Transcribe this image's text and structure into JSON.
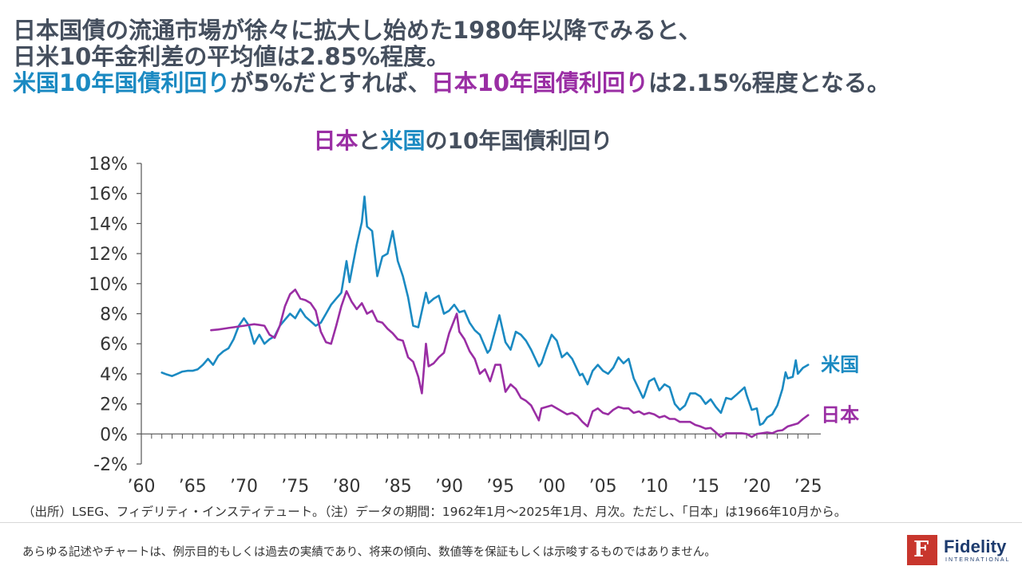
{
  "headline": {
    "line1": "日本国債の流通市場が徐々に拡大し始めた1980年以降でみると、",
    "line2": "日米10年金利差の平均値は2.85%程度。",
    "line3_us": "米国10年国債利回り",
    "line3_mid": "が5%だとすれば、",
    "line3_jp": "日本10年国債利回り",
    "line3_end": "は2.15%程度となる。"
  },
  "chart_data": {
    "type": "line",
    "title": {
      "jp": "日本",
      "joiner": "と",
      "us": "米国",
      "rest": "の10年国債利回り"
    },
    "xlabel": "",
    "ylabel": "",
    "xlim": [
      1960,
      2026
    ],
    "ylim": [
      -2,
      18
    ],
    "y_ticks": [
      -2,
      0,
      2,
      4,
      6,
      8,
      10,
      12,
      14,
      16,
      18
    ],
    "y_tick_labels": [
      "-2%",
      "0%",
      "2%",
      "4%",
      "6%",
      "8%",
      "10%",
      "12%",
      "14%",
      "16%",
      "18%"
    ],
    "x_ticks": [
      1960,
      1965,
      1970,
      1975,
      1980,
      1985,
      1990,
      1995,
      2000,
      2005,
      2010,
      2015,
      2020,
      2025
    ],
    "x_tick_labels": [
      "’60",
      "’65",
      "’70",
      "’75",
      "’80",
      "’85",
      "’90",
      "’95",
      "’00",
      "’05",
      "’10",
      "’15",
      "’20",
      "’25"
    ],
    "grid": false,
    "legend": "inline labels at right end of lines",
    "series": [
      {
        "name": "米国",
        "color": "#1b8ac2",
        "x": [
          1962.0,
          1962.5,
          1963.0,
          1963.5,
          1964.0,
          1964.5,
          1965.0,
          1965.5,
          1966.0,
          1966.5,
          1967.0,
          1967.5,
          1968.0,
          1968.5,
          1969.0,
          1969.5,
          1970.0,
          1970.5,
          1971.0,
          1971.5,
          1972.0,
          1972.5,
          1973.0,
          1973.5,
          1974.0,
          1974.5,
          1975.0,
          1975.5,
          1976.0,
          1976.5,
          1977.0,
          1977.5,
          1978.0,
          1978.5,
          1979.0,
          1979.5,
          1980.0,
          1980.3,
          1980.6,
          1981.0,
          1981.5,
          1981.75,
          1982.0,
          1982.5,
          1983.0,
          1983.5,
          1984.0,
          1984.5,
          1985.0,
          1985.5,
          1986.0,
          1986.5,
          1987.0,
          1987.75,
          1988.0,
          1988.5,
          1989.0,
          1989.5,
          1990.0,
          1990.5,
          1991.0,
          1991.5,
          1992.0,
          1992.5,
          1993.0,
          1993.75,
          1994.0,
          1994.9,
          1995.5,
          1996.0,
          1996.5,
          1997.0,
          1997.5,
          1998.0,
          1998.75,
          1999.0,
          1999.5,
          2000.0,
          2000.5,
          2001.0,
          2001.5,
          2002.0,
          2002.75,
          2003.0,
          2003.5,
          2004.0,
          2004.5,
          2005.0,
          2005.5,
          2006.0,
          2006.5,
          2007.0,
          2007.5,
          2008.0,
          2008.9,
          2009.0,
          2009.5,
          2010.0,
          2010.5,
          2011.0,
          2011.5,
          2012.0,
          2012.5,
          2013.0,
          2013.5,
          2014.0,
          2014.5,
          2015.0,
          2015.5,
          2016.0,
          2016.5,
          2017.0,
          2017.5,
          2018.0,
          2018.8,
          2019.0,
          2019.5,
          2020.0,
          2020.3,
          2020.6,
          2021.0,
          2021.5,
          2022.0,
          2022.5,
          2022.8,
          2023.0,
          2023.5,
          2023.8,
          2024.0,
          2024.5,
          2025.0
        ],
        "values": [
          4.08,
          3.95,
          3.85,
          4.0,
          4.15,
          4.2,
          4.2,
          4.3,
          4.6,
          5.0,
          4.6,
          5.2,
          5.5,
          5.7,
          6.3,
          7.2,
          7.7,
          7.2,
          6.0,
          6.6,
          6.0,
          6.3,
          6.5,
          7.2,
          7.6,
          8.0,
          7.7,
          8.3,
          7.8,
          7.5,
          7.2,
          7.4,
          8.0,
          8.6,
          9.0,
          9.4,
          11.5,
          10.1,
          11.2,
          12.6,
          14.1,
          15.8,
          13.8,
          13.5,
          10.5,
          11.8,
          12.0,
          13.5,
          11.5,
          10.5,
          9.1,
          7.2,
          7.1,
          9.4,
          8.7,
          9.0,
          9.2,
          8.0,
          8.2,
          8.6,
          8.1,
          8.2,
          7.4,
          6.9,
          6.6,
          5.4,
          5.6,
          7.9,
          6.1,
          5.6,
          6.8,
          6.6,
          6.2,
          5.6,
          4.5,
          4.7,
          5.7,
          6.6,
          6.2,
          5.1,
          5.4,
          5.0,
          3.9,
          4.0,
          3.3,
          4.2,
          4.6,
          4.2,
          4.0,
          4.4,
          5.1,
          4.7,
          5.0,
          3.7,
          2.4,
          2.5,
          3.5,
          3.7,
          2.9,
          3.3,
          3.1,
          2.0,
          1.6,
          1.9,
          2.7,
          2.7,
          2.5,
          2.0,
          2.3,
          1.8,
          1.4,
          2.4,
          2.3,
          2.6,
          3.1,
          2.6,
          1.6,
          1.7,
          0.6,
          0.7,
          1.1,
          1.3,
          1.9,
          3.0,
          4.1,
          3.7,
          3.8,
          4.9,
          4.0,
          4.4,
          4.6
        ]
      },
      {
        "name": "日本",
        "color": "#9a2ea4",
        "x": [
          1966.8,
          1967.5,
          1968.0,
          1968.5,
          1969.0,
          1969.5,
          1970.0,
          1970.5,
          1971.0,
          1971.5,
          1972.0,
          1972.5,
          1973.0,
          1973.5,
          1974.0,
          1974.5,
          1975.0,
          1975.5,
          1976.0,
          1976.5,
          1977.0,
          1977.5,
          1978.0,
          1978.5,
          1979.0,
          1979.5,
          1980.0,
          1980.5,
          1981.0,
          1981.5,
          1982.0,
          1982.5,
          1983.0,
          1983.5,
          1984.0,
          1984.5,
          1985.0,
          1985.5,
          1986.0,
          1986.5,
          1987.0,
          1987.35,
          1987.75,
          1988.0,
          1988.5,
          1989.0,
          1989.5,
          1990.0,
          1990.75,
          1991.0,
          1991.5,
          1992.0,
          1992.5,
          1993.0,
          1993.5,
          1994.0,
          1994.5,
          1995.0,
          1995.5,
          1996.0,
          1996.5,
          1997.0,
          1997.5,
          1998.0,
          1998.75,
          1999.0,
          1999.5,
          2000.0,
          2000.5,
          2001.0,
          2001.5,
          2002.0,
          2002.5,
          2003.0,
          2003.5,
          2004.0,
          2004.5,
          2005.0,
          2005.5,
          2006.0,
          2006.5,
          2007.0,
          2007.5,
          2008.0,
          2008.5,
          2009.0,
          2009.5,
          2010.0,
          2010.5,
          2011.0,
          2011.5,
          2012.0,
          2012.5,
          2013.0,
          2013.5,
          2014.0,
          2014.5,
          2015.0,
          2015.5,
          2016.0,
          2016.5,
          2017.0,
          2017.5,
          2018.0,
          2018.5,
          2019.0,
          2019.5,
          2020.0,
          2020.5,
          2021.0,
          2021.5,
          2022.0,
          2022.5,
          2023.0,
          2023.5,
          2024.0,
          2024.5,
          2025.0
        ],
        "values": [
          6.9,
          6.95,
          7.0,
          7.05,
          7.1,
          7.15,
          7.2,
          7.25,
          7.3,
          7.25,
          7.2,
          6.6,
          6.4,
          7.2,
          8.5,
          9.3,
          9.6,
          9.0,
          8.9,
          8.7,
          8.2,
          6.8,
          6.1,
          6.0,
          7.2,
          8.5,
          9.5,
          8.8,
          8.3,
          8.7,
          8.0,
          8.2,
          7.5,
          7.4,
          7.0,
          6.7,
          6.3,
          6.2,
          5.1,
          4.8,
          3.8,
          2.7,
          6.0,
          4.5,
          4.7,
          5.1,
          5.4,
          6.7,
          8.0,
          6.8,
          6.3,
          5.5,
          5.0,
          4.0,
          4.3,
          3.5,
          4.6,
          4.6,
          2.8,
          3.3,
          3.0,
          2.4,
          2.2,
          1.9,
          0.9,
          1.7,
          1.8,
          1.9,
          1.7,
          1.5,
          1.3,
          1.4,
          1.2,
          0.8,
          0.5,
          1.5,
          1.7,
          1.4,
          1.3,
          1.6,
          1.8,
          1.7,
          1.7,
          1.4,
          1.5,
          1.3,
          1.4,
          1.3,
          1.1,
          1.2,
          1.0,
          1.0,
          0.8,
          0.8,
          0.8,
          0.6,
          0.5,
          0.35,
          0.4,
          0.1,
          -0.2,
          0.05,
          0.05,
          0.05,
          0.05,
          0.0,
          -0.2,
          0.0,
          0.05,
          0.1,
          0.05,
          0.2,
          0.25,
          0.5,
          0.6,
          0.7,
          1.0,
          1.25
        ]
      }
    ]
  },
  "footer": {
    "source": "（出所）LSEG、フィデリティ・インスティテュート。（注）データの期間：1962年1月～2025年1月、月次。ただし、「日本」は1966年10月から。",
    "disclaimer": "あらゆる記述やチャートは、例示目的もしくは過去の実績であり、将来の傾向、数値等を保証もしくは示唆するものではありません。",
    "logo_word": "Fidelity",
    "logo_sub": "INTERNATIONAL",
    "logo_color": "#c8362d"
  }
}
